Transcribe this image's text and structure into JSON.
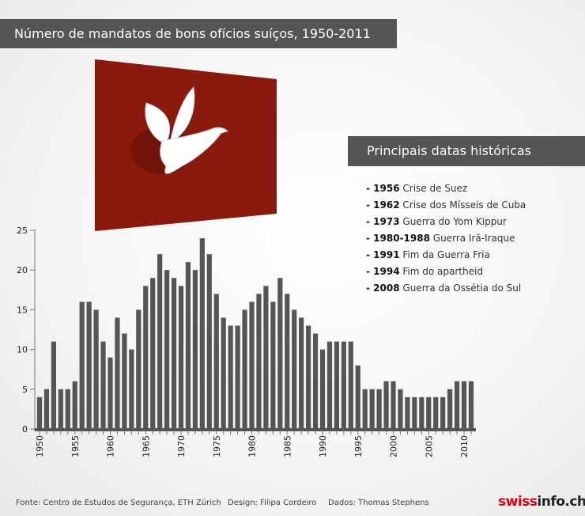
{
  "title": "Número de mandatos de bons ofícios suíços, 1950-2011",
  "events_title": "Principais datas históricas",
  "events": [
    {
      "year": "1956",
      "label": "Crise de Suez"
    },
    {
      "year": "1962",
      "label": "Crise dos Mísseis de Cuba"
    },
    {
      "year": "1973",
      "label": "Guerra do Yom Kippur"
    },
    {
      "year": "1980-1988",
      "label": "Guerra Irã-Iraque"
    },
    {
      "year": "1991",
      "label": "Fim da Guerra Fria"
    },
    {
      "year": "1994",
      "label": "Fim do apartheid"
    },
    {
      "year": "2008",
      "label": "Guerra da Ossétia do Sul"
    }
  ],
  "footer": {
    "source": "Fonte: Centro de Estudos de Segurança, ETH Zürich",
    "design": "Design: Filipa Cordeiro",
    "data": "Dados: Thomas Stephens"
  },
  "logo": {
    "part1": "swiss",
    "part2": "info.ch"
  },
  "colors": {
    "bar": "#555555",
    "banner": "#555555",
    "flag": "#8b1a0e"
  },
  "chart_data": {
    "type": "bar",
    "title": "Número de mandatos de bons ofícios suíços, 1950-2011",
    "xlabel": "",
    "ylabel": "",
    "ylim": [
      0,
      25
    ],
    "yticks": [
      0,
      5,
      10,
      15,
      20,
      25
    ],
    "xticks": [
      1950,
      1955,
      1960,
      1965,
      1970,
      1975,
      1980,
      1985,
      1990,
      1995,
      2000,
      2005,
      2010
    ],
    "x_start": 1950,
    "values": [
      4,
      5,
      11,
      5,
      5,
      6,
      16,
      16,
      15,
      11,
      9,
      14,
      12,
      10,
      15,
      18,
      19,
      22,
      20,
      19,
      18,
      21,
      20,
      24,
      22,
      17,
      14,
      13,
      13,
      15,
      16,
      17,
      18,
      16,
      19,
      17,
      15,
      14,
      13,
      12,
      10,
      11,
      11,
      11,
      11,
      8,
      5,
      5,
      5,
      6,
      6,
      5,
      4,
      4,
      4,
      4,
      4,
      4,
      5,
      6,
      6,
      6
    ]
  }
}
